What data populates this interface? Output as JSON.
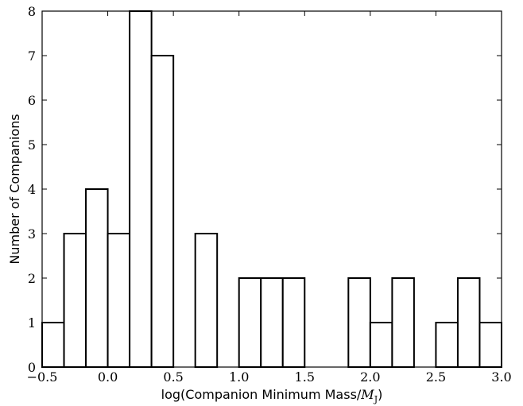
{
  "chart_data": {
    "type": "bar",
    "xlabel": "log(Companion Minimum Mass/",
    "xlabel_symbol": "M",
    "xlabel_subscript": "J",
    "xlabel_end": ")",
    "ylabel": "Number of Companions",
    "xlim": [
      -0.5,
      3.0
    ],
    "ylim": [
      0,
      8
    ],
    "x_ticks": [
      -0.5,
      0.0,
      0.5,
      1.0,
      1.5,
      2.0,
      2.5,
      3.0
    ],
    "x_tick_labels": [
      "−0.5",
      "0.0",
      "0.5",
      "1.0",
      "1.5",
      "2.0",
      "2.5",
      "3.0"
    ],
    "y_ticks": [
      0,
      1,
      2,
      3,
      4,
      5,
      6,
      7,
      8
    ],
    "y_tick_labels": [
      "0",
      "1",
      "2",
      "3",
      "4",
      "5",
      "6",
      "7",
      "8"
    ],
    "bin_width": 0.1667,
    "bins": [
      {
        "x0": -0.5,
        "x1": -0.3333,
        "count": 1
      },
      {
        "x0": -0.3333,
        "x1": -0.1667,
        "count": 3
      },
      {
        "x0": -0.1667,
        "x1": 0.0,
        "count": 4
      },
      {
        "x0": 0.0,
        "x1": 0.1667,
        "count": 3
      },
      {
        "x0": 0.1667,
        "x1": 0.3333,
        "count": 8
      },
      {
        "x0": 0.3333,
        "x1": 0.5,
        "count": 7
      },
      {
        "x0": 0.6667,
        "x1": 0.8333,
        "count": 3
      },
      {
        "x0": 1.0,
        "x1": 1.1667,
        "count": 2
      },
      {
        "x0": 1.1667,
        "x1": 1.3333,
        "count": 2
      },
      {
        "x0": 1.3333,
        "x1": 1.5,
        "count": 2
      },
      {
        "x0": 1.8333,
        "x1": 2.0,
        "count": 2
      },
      {
        "x0": 2.0,
        "x1": 2.1667,
        "count": 1
      },
      {
        "x0": 2.1667,
        "x1": 2.3333,
        "count": 2
      },
      {
        "x0": 2.5,
        "x1": 2.6667,
        "count": 1
      },
      {
        "x0": 2.6667,
        "x1": 2.8333,
        "count": 2
      },
      {
        "x0": 2.8333,
        "x1": 3.0,
        "count": 1
      }
    ],
    "grid": false,
    "colors": {
      "bar_fill": "#ffffff",
      "bar_edge": "#000000",
      "axes": "#000000"
    }
  }
}
